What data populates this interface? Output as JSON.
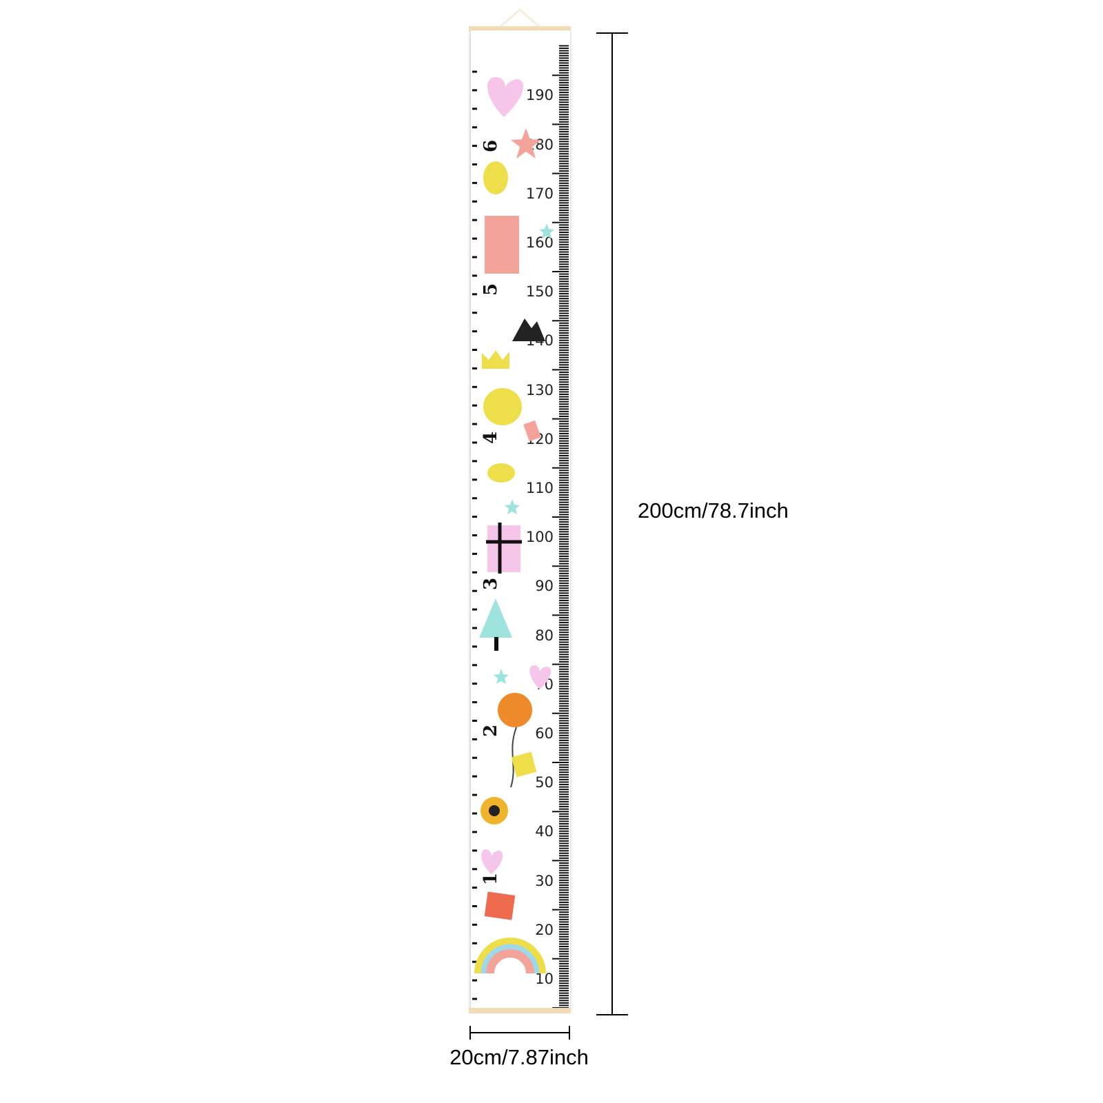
{
  "product": {
    "height_label": "200cm/78.7inch",
    "width_label": "20cm/7.87inch"
  },
  "ruler": {
    "cm_labels": [
      "190",
      "180",
      "170",
      "160",
      "150",
      "140",
      "130",
      "120",
      "110",
      "100",
      "90",
      "80",
      "70",
      "60",
      "50",
      "40",
      "30",
      "20",
      "10"
    ],
    "feet_labels": [
      "6",
      "5",
      "4",
      "3",
      "2",
      "1"
    ]
  },
  "colors": {
    "wood": "#f3dcb5",
    "pink": "#f6c6ea",
    "coral": "#f4a39a",
    "yellow": "#eedf4a",
    "mint": "#9fe3df",
    "orange": "#ee8a2a"
  }
}
